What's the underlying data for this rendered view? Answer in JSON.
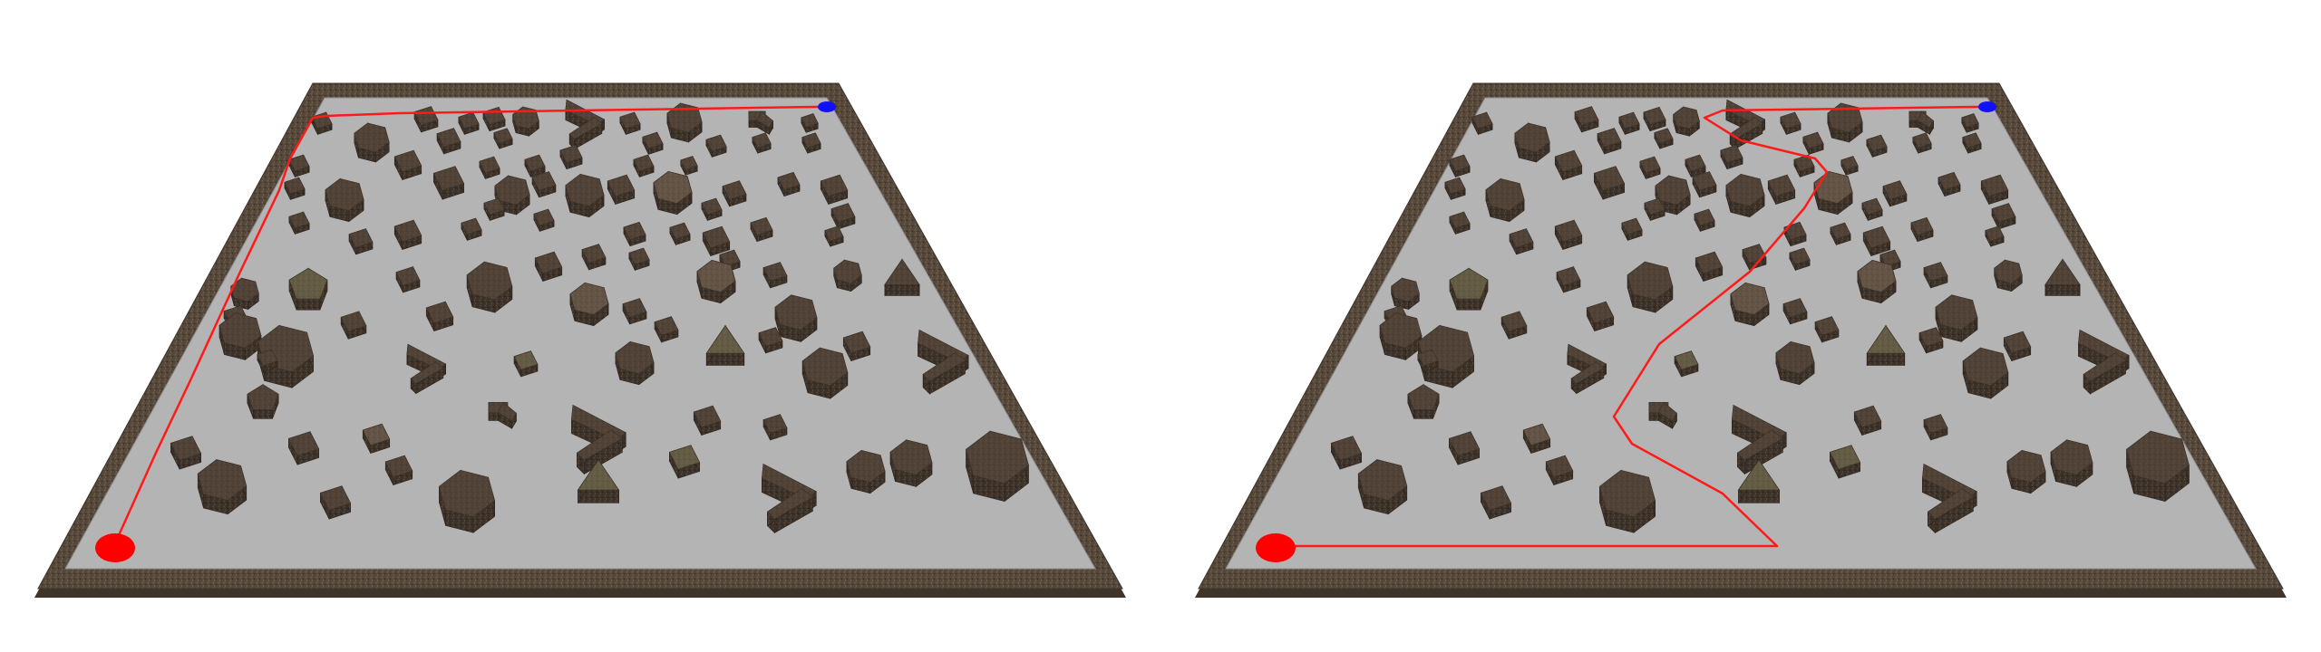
{
  "colors": {
    "background": "#ffffff",
    "floor": "#b4b4b4",
    "wall_top": "#5a4e42",
    "wall_side": "#3e342b",
    "obstacle_top_dark": "#4e4034",
    "obstacle_top_mid": "#6a5a4c",
    "obstacle_top_olive": "#6a6648",
    "obstacle_side": "#3a3028",
    "path": "#ff1a1a",
    "start_marker": "#ff0000",
    "goal_marker": "#1010ff"
  },
  "panels": [
    {
      "id": "left",
      "path_type": "border-hugging"
    },
    {
      "id": "right",
      "path_type": "through-obstacles"
    }
  ]
}
